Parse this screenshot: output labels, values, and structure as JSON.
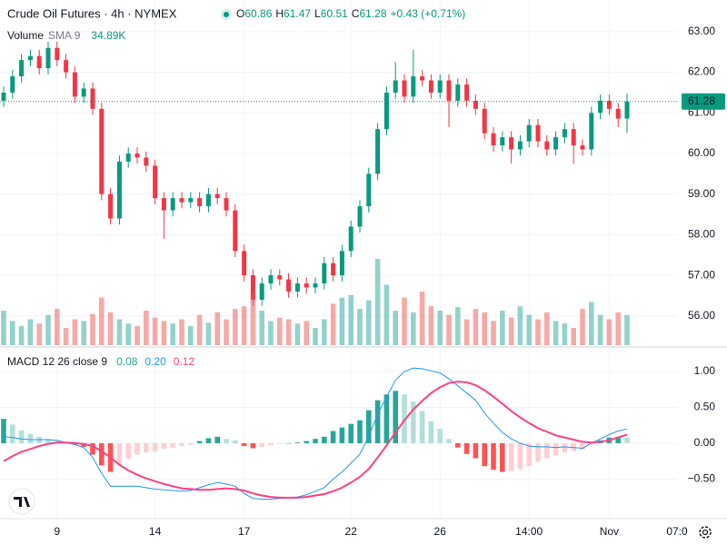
{
  "chart_data": [
    {
      "type": "candlestick",
      "title": "Crude Oil Futures · 4h · NYMEX",
      "ohlc_labels": [
        "O",
        "H",
        "L",
        "C"
      ],
      "change": "+0.43 (+0.71%)",
      "categories": [
        null,
        null,
        null,
        null,
        null,
        null,
        "9",
        null,
        null,
        null,
        null,
        null,
        null,
        null,
        null,
        null,
        null,
        "14",
        null,
        null,
        null,
        null,
        null,
        null,
        null,
        null,
        null,
        "17",
        null,
        null,
        null,
        null,
        null,
        null,
        null,
        null,
        null,
        null,
        null,
        "22",
        null,
        null,
        null,
        null,
        null,
        null,
        null,
        null,
        null,
        "26",
        null,
        null,
        null,
        null,
        null,
        null,
        null,
        null,
        null,
        "14:00",
        null,
        null,
        null,
        null,
        null,
        null,
        null,
        null,
        "Nov",
        null,
        null
      ],
      "next_label": "07:0",
      "open": [
        61.3,
        61.5,
        61.9,
        62.3,
        62.4,
        62.1,
        62.6,
        62.3,
        62.0,
        61.4,
        61.6,
        61.1,
        59.0,
        58.4,
        59.8,
        60.0,
        59.9,
        59.7,
        58.9,
        58.6,
        58.9,
        58.8,
        58.9,
        58.7,
        59.0,
        58.9,
        58.6,
        57.6,
        57.0,
        56.4,
        56.8,
        57.0,
        56.9,
        56.6,
        56.8,
        56.7,
        56.8,
        57.3,
        57.0,
        57.6,
        58.2,
        58.7,
        59.5,
        60.6,
        61.5,
        61.8,
        61.4,
        61.9,
        61.8,
        61.5,
        61.8,
        61.3,
        61.7,
        61.3,
        61.1,
        60.5,
        60.2,
        60.4,
        60.1,
        60.3,
        60.7,
        60.3,
        60.1,
        60.4,
        60.6,
        60.2,
        60.1,
        61.0,
        61.3,
        61.1,
        60.86
      ],
      "high": [
        61.65,
        62.05,
        62.45,
        62.55,
        62.55,
        62.75,
        62.75,
        62.45,
        62.15,
        61.75,
        61.75,
        61.25,
        59.15,
        59.95,
        60.15,
        60.15,
        60.05,
        59.85,
        59.05,
        59.05,
        59.05,
        59.05,
        59.05,
        59.15,
        59.15,
        59.05,
        58.75,
        57.75,
        57.15,
        56.95,
        57.15,
        57.15,
        57.05,
        56.95,
        56.95,
        56.95,
        57.45,
        57.45,
        57.75,
        58.35,
        58.85,
        59.65,
        60.75,
        61.65,
        62.25,
        61.95,
        62.55,
        62.05,
        61.95,
        61.95,
        61.95,
        61.85,
        61.85,
        61.45,
        61.25,
        60.65,
        60.55,
        60.55,
        60.45,
        60.85,
        60.85,
        60.45,
        60.55,
        60.75,
        60.75,
        60.35,
        61.15,
        61.45,
        61.45,
        61.25,
        61.47
      ],
      "low": [
        61.15,
        61.35,
        61.75,
        62.15,
        61.95,
        61.95,
        62.15,
        61.85,
        61.25,
        61.25,
        60.95,
        58.85,
        58.25,
        58.25,
        59.65,
        59.75,
        59.55,
        58.75,
        57.9,
        58.45,
        58.65,
        58.65,
        58.55,
        58.55,
        58.75,
        58.45,
        57.45,
        56.85,
        56.25,
        56.25,
        56.65,
        56.75,
        56.45,
        56.45,
        56.55,
        56.55,
        56.65,
        56.85,
        56.85,
        57.45,
        58.05,
        58.55,
        59.35,
        60.45,
        61.35,
        61.25,
        61.25,
        61.65,
        61.35,
        61.35,
        60.65,
        61.15,
        61.15,
        60.95,
        60.35,
        60.05,
        60.05,
        59.75,
        59.95,
        60.15,
        60.15,
        59.95,
        59.95,
        60.25,
        59.75,
        59.95,
        59.95,
        60.85,
        60.95,
        60.65,
        60.51
      ],
      "close": [
        61.5,
        61.9,
        62.3,
        62.4,
        62.1,
        62.6,
        62.3,
        62.0,
        61.4,
        61.6,
        61.1,
        59.0,
        58.4,
        59.8,
        60.0,
        59.9,
        59.7,
        58.9,
        58.6,
        58.9,
        58.8,
        58.9,
        58.7,
        59.0,
        58.9,
        58.6,
        57.6,
        57.0,
        56.4,
        56.8,
        57.0,
        56.9,
        56.6,
        56.8,
        56.7,
        56.8,
        57.3,
        57.0,
        57.6,
        58.2,
        58.7,
        59.5,
        60.6,
        61.5,
        61.8,
        61.4,
        61.9,
        61.8,
        61.5,
        61.8,
        61.3,
        61.7,
        61.3,
        61.1,
        60.5,
        60.2,
        60.4,
        60.1,
        60.3,
        60.7,
        60.3,
        60.1,
        60.4,
        60.6,
        60.2,
        60.1,
        61.0,
        61.3,
        61.1,
        60.86,
        61.28
      ],
      "up_color": "#089981",
      "down_color": "#f23645",
      "ylim": [
        55.28,
        63.78
      ],
      "yticks": [
        {
          "value": 56,
          "label": "56.00"
        },
        {
          "value": 57,
          "label": "57.00"
        },
        {
          "value": 58,
          "label": "58.00"
        },
        {
          "value": 59,
          "label": "59.00"
        },
        {
          "value": 60,
          "label": "60.00"
        },
        {
          "value": 61,
          "label": "61.00"
        },
        {
          "value": 62,
          "label": "62.00"
        },
        {
          "value": 63,
          "label": "63.00"
        }
      ],
      "grid": true
    },
    {
      "type": "volume",
      "title": "Volume",
      "subtitle": "SMA 9",
      "legend_value": "34.89K",
      "values": [
        40,
        28,
        22,
        30,
        25,
        35,
        42,
        20,
        30,
        28,
        36,
        55,
        38,
        30,
        25,
        22,
        40,
        32,
        28,
        25,
        30,
        22,
        35,
        26,
        38,
        30,
        42,
        45,
        60,
        40,
        28,
        32,
        30,
        25,
        28,
        20,
        30,
        48,
        55,
        58,
        42,
        52,
        100,
        70,
        40,
        55,
        38,
        62,
        45,
        40,
        35,
        44,
        30,
        42,
        38,
        28,
        40,
        32,
        45,
        35,
        30,
        38,
        28,
        25,
        20,
        42,
        50,
        35,
        30,
        38,
        34.89
      ],
      "up_color": "#26a69a",
      "down_color": "#ef5350",
      "ylim": [
        0,
        120
      ]
    },
    {
      "type": "macd",
      "title": "MACD 12 26 close 9",
      "legend_values": [
        "0.08",
        "0.20",
        "0.12"
      ],
      "histogram": [
        0.34,
        0.26,
        0.18,
        0.13,
        0.09,
        0.06,
        0.03,
        0.0,
        -0.02,
        -0.05,
        -0.16,
        -0.31,
        -0.4,
        -0.3,
        -0.22,
        -0.16,
        -0.13,
        -0.11,
        -0.08,
        -0.06,
        -0.04,
        -0.02,
        0.03,
        0.07,
        0.09,
        0.06,
        0.04,
        -0.04,
        -0.07,
        -0.05,
        -0.03,
        -0.01,
        0.0,
        0.01,
        0.03,
        0.06,
        0.09,
        0.17,
        0.22,
        0.27,
        0.32,
        0.46,
        0.6,
        0.68,
        0.73,
        0.68,
        0.58,
        0.45,
        0.31,
        0.2,
        0.06,
        -0.06,
        -0.15,
        -0.21,
        -0.32,
        -0.37,
        -0.4,
        -0.39,
        -0.36,
        -0.32,
        -0.26,
        -0.21,
        -0.17,
        -0.13,
        -0.11,
        -0.09,
        -0.01,
        0.04,
        0.08,
        0.09,
        0.08
      ],
      "macd": [
        0.09,
        0.08,
        0.06,
        0.05,
        0.05,
        0.05,
        0.04,
        0.01,
        -0.02,
        -0.06,
        -0.2,
        -0.42,
        -0.6,
        -0.6,
        -0.6,
        -0.6,
        -0.62,
        -0.64,
        -0.65,
        -0.66,
        -0.67,
        -0.66,
        -0.62,
        -0.58,
        -0.55,
        -0.57,
        -0.6,
        -0.7,
        -0.77,
        -0.78,
        -0.78,
        -0.77,
        -0.76,
        -0.75,
        -0.72,
        -0.67,
        -0.62,
        -0.5,
        -0.4,
        -0.28,
        -0.15,
        0.1,
        0.4,
        0.65,
        0.88,
        1.0,
        1.05,
        1.04,
        1.01,
        0.98,
        0.9,
        0.8,
        0.7,
        0.6,
        0.42,
        0.28,
        0.15,
        0.06,
        0.0,
        -0.04,
        -0.05,
        -0.05,
        -0.06,
        -0.05,
        -0.06,
        -0.07,
        0.0,
        0.06,
        0.12,
        0.17,
        0.2
      ],
      "signal": [
        -0.25,
        -0.18,
        -0.12,
        -0.08,
        -0.04,
        -0.01,
        0.01,
        0.01,
        0.0,
        -0.01,
        -0.04,
        -0.11,
        -0.2,
        -0.3,
        -0.38,
        -0.44,
        -0.49,
        -0.53,
        -0.57,
        -0.6,
        -0.63,
        -0.64,
        -0.65,
        -0.65,
        -0.64,
        -0.63,
        -0.64,
        -0.66,
        -0.7,
        -0.73,
        -0.75,
        -0.76,
        -0.76,
        -0.76,
        -0.75,
        -0.73,
        -0.71,
        -0.67,
        -0.62,
        -0.55,
        -0.47,
        -0.36,
        -0.2,
        -0.03,
        0.15,
        0.32,
        0.47,
        0.59,
        0.7,
        0.78,
        0.84,
        0.86,
        0.85,
        0.81,
        0.74,
        0.65,
        0.55,
        0.45,
        0.36,
        0.28,
        0.21,
        0.16,
        0.11,
        0.08,
        0.05,
        0.02,
        0.01,
        0.02,
        0.04,
        0.08,
        0.12
      ],
      "macd_color": "#2196f3",
      "signal_color": "#ff4081",
      "histogram_colors": [
        "#26a69a",
        "#b2dfdb",
        "#ffcdd2",
        "#ff5252"
      ],
      "ylim": [
        -1.04,
        1.33
      ],
      "yticks": [
        {
          "value": -0.5,
          "label": "−0.50"
        },
        {
          "value": 0,
          "label": "0.00"
        },
        {
          "value": 0.5,
          "label": "0.50"
        },
        {
          "value": 1,
          "label": "1.00"
        }
      ],
      "grid": true
    }
  ]
}
